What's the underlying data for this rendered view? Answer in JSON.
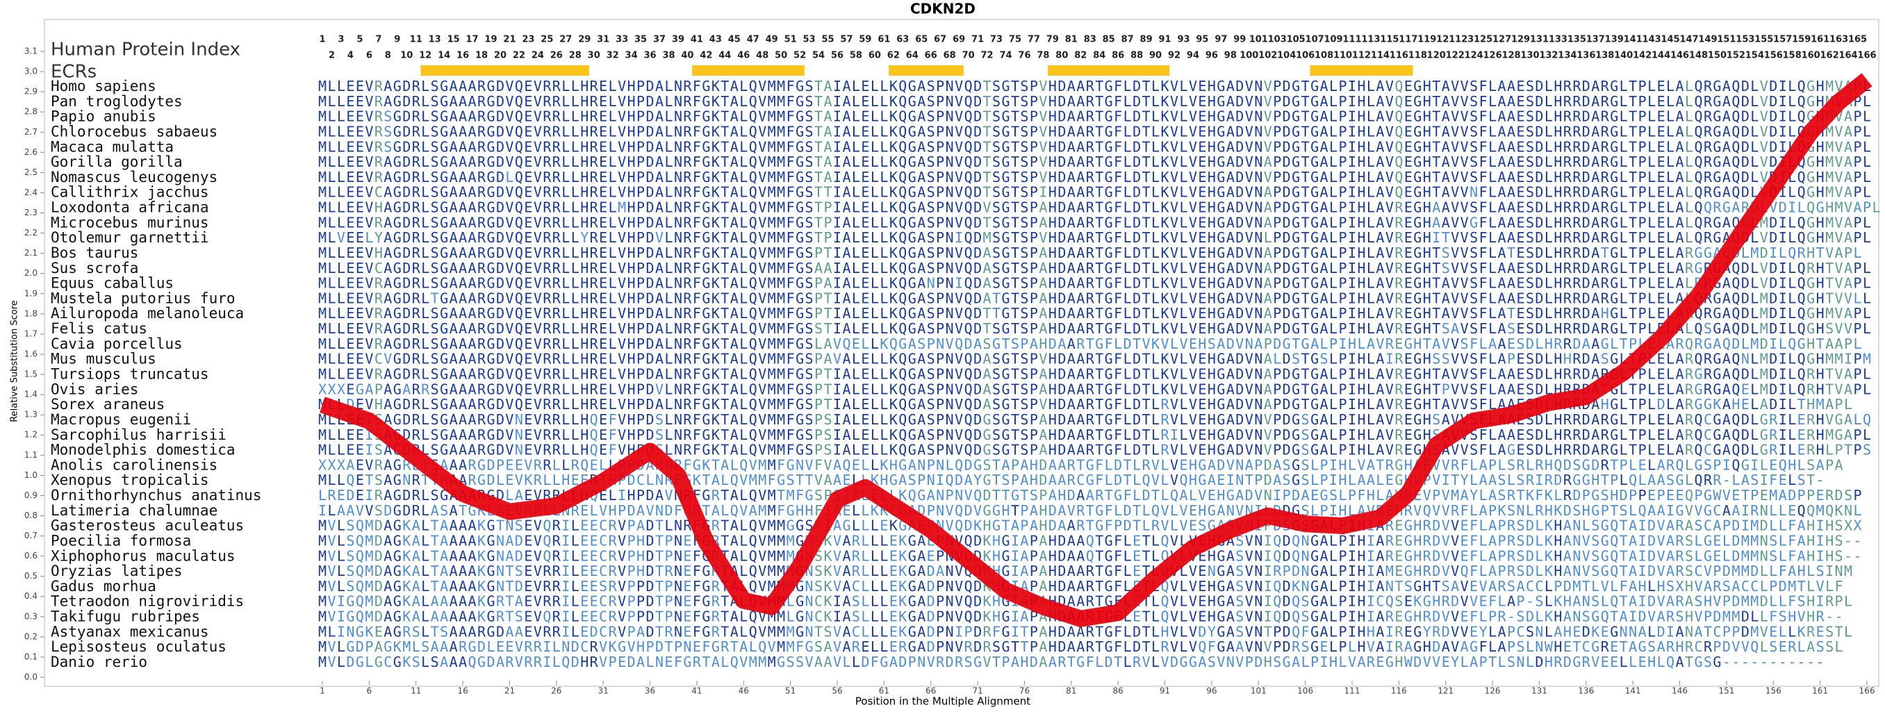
{
  "chart_data": {
    "type": "alignment",
    "title": "CDKN2D",
    "x_label": "Position in the Multiple Alignment",
    "y_label": "Relative Substitution Score",
    "xlim": [
      1,
      166
    ],
    "ylim": [
      0,
      3.1
    ],
    "xticks": [
      1,
      6,
      11,
      16,
      21,
      26,
      31,
      36,
      41,
      46,
      51,
      56,
      61,
      66,
      71,
      76,
      81,
      86,
      91,
      96,
      101,
      106,
      111,
      116,
      121,
      126,
      131,
      136,
      141,
      146,
      151,
      156,
      161,
      166
    ],
    "yticks": [
      {
        "value": 0,
        "label": "0.0"
      },
      {
        "value": 0.1,
        "label": "0.1"
      },
      {
        "value": 0.2,
        "label": "0.2"
      },
      {
        "value": 0.3,
        "label": "0.3"
      },
      {
        "value": 0.4,
        "label": "0.4"
      },
      {
        "value": 0.5,
        "label": "0.5"
      },
      {
        "value": 0.6,
        "label": "0.6"
      },
      {
        "value": 0.7,
        "label": "0.7"
      },
      {
        "value": 0.8,
        "label": "0.8"
      },
      {
        "value": 0.9,
        "label": "0.9"
      },
      {
        "value": 1,
        "label": "1.0"
      },
      {
        "value": 1.1,
        "label": "1.1"
      },
      {
        "value": 1.2,
        "label": "1.2"
      },
      {
        "value": 1.3,
        "label": "1.3"
      },
      {
        "value": 1.4,
        "label": "1.4"
      },
      {
        "value": 1.5,
        "label": "1.5"
      },
      {
        "value": 1.6,
        "label": "1.6"
      },
      {
        "value": 1.7,
        "label": "1.7"
      },
      {
        "value": 1.8,
        "label": "1.8"
      },
      {
        "value": 1.9,
        "label": "1.9"
      },
      {
        "value": 2,
        "label": "2.0"
      },
      {
        "value": 2.1,
        "label": "2.1"
      },
      {
        "value": 2.2,
        "label": "2.2"
      },
      {
        "value": 2.3,
        "label": "2.3"
      },
      {
        "value": 2.4,
        "label": "2.4"
      },
      {
        "value": 2.5,
        "label": "2.5"
      },
      {
        "value": 2.6,
        "label": "2.6"
      },
      {
        "value": 2.7,
        "label": "2.7"
      },
      {
        "value": 2.8,
        "label": "2.8"
      },
      {
        "value": 2.9,
        "label": "2.9"
      },
      {
        "value": 3,
        "label": "3.0"
      },
      {
        "value": 3.1,
        "label": "3.1"
      }
    ],
    "x": [
      1,
      6,
      11,
      16,
      21,
      26,
      31,
      36,
      39,
      42,
      46,
      49,
      52,
      56,
      59,
      62,
      66,
      70,
      74,
      78,
      82,
      86,
      90,
      94,
      98,
      102,
      106,
      110,
      114,
      117,
      120,
      124,
      128,
      132,
      136,
      140,
      144,
      148,
      152,
      156,
      160,
      163,
      166
    ],
    "values": [
      1.35,
      1.27,
      1.09,
      0.91,
      0.82,
      0.85,
      0.97,
      1.12,
      1.0,
      0.67,
      0.38,
      0.35,
      0.55,
      0.88,
      0.94,
      0.85,
      0.73,
      0.58,
      0.43,
      0.35,
      0.29,
      0.32,
      0.49,
      0.64,
      0.73,
      0.8,
      0.76,
      0.75,
      0.79,
      0.91,
      1.15,
      1.27,
      1.3,
      1.36,
      1.39,
      1.51,
      1.68,
      1.89,
      2.16,
      2.43,
      2.7,
      2.85,
      2.96
    ],
    "color": "#e6000c",
    "human_index": {
      "label": "Human Protein Index",
      "values": [
        1,
        2,
        3,
        4,
        5,
        6,
        7,
        8,
        9,
        10,
        11,
        12,
        13,
        14,
        15,
        16,
        17,
        18,
        19,
        20,
        21,
        22,
        23,
        24,
        25,
        26,
        27,
        28,
        29,
        30,
        31,
        32,
        33,
        34,
        35,
        36,
        37,
        38,
        39,
        40,
        41,
        42,
        43,
        44,
        45,
        46,
        47,
        48,
        49,
        50,
        51,
        52,
        53,
        54,
        55,
        56,
        57,
        58,
        59,
        60,
        61,
        62,
        63,
        64,
        65,
        66,
        67,
        68,
        69,
        70,
        71,
        72,
        73,
        74,
        75,
        76,
        77,
        78,
        79,
        80,
        81,
        82,
        83,
        84,
        85,
        86,
        87,
        88,
        89,
        90,
        91,
        92,
        93,
        94,
        95,
        96,
        97,
        98,
        99,
        100,
        101,
        102,
        103,
        104,
        105,
        106,
        107,
        108,
        109,
        110,
        111,
        112,
        113,
        114,
        115,
        116,
        117,
        118,
        119,
        120,
        121,
        122,
        123,
        124,
        125,
        126,
        127,
        128,
        129,
        130,
        131,
        132,
        133,
        134,
        135,
        136,
        137,
        138,
        139,
        140,
        141,
        142,
        143,
        144,
        145,
        146,
        147,
        148,
        149,
        150,
        151,
        152,
        153,
        154,
        155,
        156,
        157,
        158,
        159,
        160,
        161,
        162,
        163,
        164,
        165,
        166
      ]
    },
    "ecrs": {
      "label": "ECRs",
      "color": "#fac41c",
      "ranges": [
        [
          12,
          29
        ],
        [
          41,
          52
        ],
        [
          62,
          69
        ],
        [
          79,
          91
        ],
        [
          107,
          117
        ]
      ]
    },
    "letter_colors": {
      "conserved": "#1b3c96",
      "changed": "#4f8fcf",
      "variable": "#5e9c8c"
    },
    "alignment": [
      {
        "name": "Homo sapiens",
        "sequence": "MLLEEVRAGDRLSGAAARGDVQEVRRLLHRELVHPDALNRFGKTALQVMMFGSTAIALELLKQGASPNVQDTSGTSPVHDAARTGFLDTLKVLVEHGADVNVPDGTGALPIHLAVQEGHTAVVSFLAAESDLHRRDARGLTPLELALQRGAQDLVDILQGHMVAPL"
      },
      {
        "name": "Pan troglodytes",
        "sequence": "MLLEEVRAGDRLSGAAARGDVQEVRRLLHRELVHPDALNRFGKTALQVMMFGSTAIALELLKQGASPNVQDTSGTSPVHDAARTGFLDTLKVLVEHGADVNVPDGTGALPIHLAVQEGHTAVVSFLAAESDLHRRDARGLTPLELALQRGAQDLVDILQGHMVAPL"
      },
      {
        "name": "Papio anubis",
        "sequence": "MLLEEVRSGDRLSGAAARGDVQEVRRLLHRELVHPDALNRFGKTALQVMMFGSTAIALELLKQGASPNVQDTSGTSPVHDAARTGFLDTLKVLVEHGADVNVPDGTGALPIHLAVQEGHTAVVSFLAAESDLHRRDARGLTPLELALQRGAQDLVDILQGHMVAPL"
      },
      {
        "name": "Chlorocebus sabaeus",
        "sequence": "MLLEEVRSGDRLSGAAARGDVQEVRRLLHRELVHPDALNRFGKTALQVMMFGSTAIALELLKQGASPNVQDTSGTSPVHDAARTGFLDTLKVLVEHGADVNVPDGTGALPIHLAVQEGHTAVVSFLAAESDLHRRDARGLTPLELALQRGAQDLVDILQGHMVAPL"
      },
      {
        "name": "Macaca mulatta",
        "sequence": "MLLEEVRSGDRLSGAAARGDVQEVRRLLHRELVHPDALNRFGKTALQVMMFGSTAIALELLKQGASPNVQDTSGTSPVHDAARTGFLDTLKVLVEHGADVNVPDGTGALPIHLAVQEGHTAVVSFLAAESDLHRRDARGLTPLELALQRGAQDLVDILQGHMVAPL"
      },
      {
        "name": "Gorilla gorilla",
        "sequence": "MLLEEVRAGDRLSGAAARGDVQEVRRLLHRELVHPDALNRFGKTALQVMMFGSTAIALELLKQGASPNVQDTSGTSPVHDAARTGFLDTLKVLVEHGADVNAPDGTGALPIHLAVQEGHTAVVSFLAAESDLHRRDARGLTPLELALQRGAQDLVDILQGHMVAPL"
      },
      {
        "name": "Nomascus leucogenys",
        "sequence": "MLLEEVRAGDRLSGAAARGDLQEVRRLLHRELVHPDALNRFGKTALQVMMFGSTAIALELLKQGASPNVQDTSGTSPVHDAARTGFLDTLKVLVEHGADVNVPDGTGALPIHLAVQEGHTAVVSFLAAESDLHRRDARGLTPLELALQRGAQDLVDILQGHMVAPL"
      },
      {
        "name": "Callithrix jacchus",
        "sequence": "MLLEEVCAGDRLSGAAARGDVQEVRRLLHRELVHPDALNRFGKTALQVMMFGSTTIALELLKQGASPNVQDTSGTSPIHDAARTGFLDTLKVLVEHGADVNAPDGTGALPIHLAVQEGHTAVVNFLAAESDLHRRDARGLTPLELALQRGAQDLVDILQGHMVAPL"
      },
      {
        "name": "Loxodonta africana",
        "sequence": "MLLEEVHAGDRLSGAAARGDVQEVRRLLHRELMHPDALNRFGKTALQVMMFGSTPIALELLKQGASPNVQDVSGTSPAHDAARTGFLDTLKVLVEHGADVNAPDGTGALPIHLAVREGHAAVVSFLAAESDLHRRDARGLTPLELALQQRGARDLVDILQGHMVAPL"
      },
      {
        "name": "Microcebus murinus",
        "sequence": "MLLEEVRAGDRLSGAAARGDVQEVRRLLHRELVHPDALNRFGKTALQVMMFGSTPIALELLKQGASPNVQDTSGTSPAHDAARTGFLDTLKVLVEHGADVNAPDGTGALPIHLAVREGHAAVVGFLAAESDLHRRDARGLTPLELALQRGAQGLMDILQGHMVAPL"
      },
      {
        "name": "Otolemur garnettii",
        "sequence": "MLVEELYAGDRLSGAAARGDVQEVRRLLYRELVHPDVLNRFGKTALQVMMFGSTPIALELLKQGASPNIQDMSGTSPVHDAARTGFLDTLKVLVEHGADVNLPDGTGALPIHLAVREGHITVVSFLAAESDLHRRDARGLTPLELALQRGAQDLVDILQGHMVAPL"
      },
      {
        "name": "Bos taurus",
        "sequence": "MLLEEVHAGDRLSGAAARGDVQEVRRLLHRELVHPDALNRFGKTALQVMMFGSPTIALELLKQGASPNVQDASGTSPAHDAARTGFLDTLKVLVEHGADVNAPDGTGALPIHLAVREGHTSVVSFLATESDLHRRDATGLTPLELARGGAQDLMDILQRHTVAPL"
      },
      {
        "name": "Sus scrofa",
        "sequence": "MLLEEVCAGDRLSGAAARGDVQEVRRLLHRELVHPDALNRFGKTALQVMMFGSAAIALELLKQGASPNVQDASGTSPAHDAARTGFLDTLKVLVEHGADVNAPDGTGALPIHLAVREGHTSVVSFLAAESDLHRRDARGLTPLELARGRGAQDLVDILQRHTVAPL"
      },
      {
        "name": "Equus caballus",
        "sequence": "MLLEEVRAGDRLSGAAARGDVQEVRRLLHRELVHPDALNRFGKTALQVMMFGSPAIALELLKQGANPNIQDASGTSPAHDAARTGFLDTLKVLVEHGADVNAPDGTGALPIHLAVREGHTAVVSFLAAESDLHRRDARGLTPLELALRRGAQDLVDILQGHTVAPL"
      },
      {
        "name": "Mustela putorius furo",
        "sequence": "MLLEEVRAGDRLTGAAARGDVQEVRRLLHRELVHPDALNRFGKTALQVMMFGSPTIALELLKQGASPNVQDATGTSPAHDAARTGFLDTLKVLVEHGADVNAPDGTGALPIHLAVREGHTAVVSFLAAESDLHRRDARGLTPLELALQRGAQDLMDILQGHTVVLL"
      },
      {
        "name": "Ailuropoda melanoleuca",
        "sequence": "MLLEEVRAGDRLSGAAARGDVQEVRRLLHRELVHPDALNRFGKTALQVMMFGSPTIALELLKQGASPNVQDTTGTSPAHDAARTGFLDTLKVLVEHGADVNAPDGTGALPIHLAVREGHTAVVSFLATESDLHRRDAHGLTPLELARQRGAQDLMDILQGHMVAPL"
      },
      {
        "name": "Felis catus",
        "sequence": "MLLEEVRAGDRLSGAAARGDVQEVRRLLHRELVHPDALNRFGKTALQVMMFGSSTIALELLKQGASPNVQDTSGTSPAHDAARTGFLDTLKVLVEHGADVNAPDGTGALPIHLAVREGHTSAVSFLASESDLHRRDARGLTPLELALQSGAQDLMDILQGHSVVPL"
      },
      {
        "name": "Cavia porcellus",
        "sequence": "MLLEEVRAGDRLSGAAARGDVQEVRRLLHRELVHPDALNRFGKTALQVMMFGSLAVQELLKQGASPNVQDASGTSPAHDAARTGFLDTVKVLVEHSADVNAPDGTGALPIHLAVREGHTAVVSFLAAESDLHRRDAAGLTPLELARQRGAQDLMDILQGHTAAPL"
      },
      {
        "name": "Mus musculus",
        "sequence": "MLLEEVCVGDRLSGAAARGDVQEVRRLLHRELVHPDALNRFGKTALQVMMFGSPAVALELLKQGASPNVQDASGTSPVHDAARTGFLDTLKVLVEHGADVNALDSTGSLPIHLAIREGHSSVVSFLAPESDLHHRDASGLTPLELARQRGAQNLMDILQGHMMIPM"
      },
      {
        "name": "Tursiops truncatus",
        "sequence": "MLLEEVRAGDRLSGAAARGDVQEVRRLLHRELVHPDALNRFGKTALQVMMFGSPTIALELLKQGASPNVQDASGTSPAHDAARTGFLDTLKVLVEHGADVNAPDGTGALPIHLAVREGHTAVVSFLAAESDLHRRDARGLTPLELARGRGAQDLMDILQRHTVAPL"
      },
      {
        "name": "Ovis aries",
        "sequence": "XXXEGAPAGARRSGAAARGDVQEVRRLLHRELVHPDVLNRFGKTALQVMMFGSPTIALELLKQGASPNVQDASGTSPAHDAARTGFLDTLKVLVEHGADVNAPDGTGALPIHLAVREGHTPVVSFLAAESDLHRRDATGLTPLELARGRGAQELMDILQRHTVAPL"
      },
      {
        "name": "Sorex araneus",
        "sequence": "MLLDEVHAGDRLSGAAARGDVQEVRRLLHRELVHPDALNRFGKTALQVMMFGSPTIALELLKQGASPNVQDASGTSPVHDAARTGFLDTLRVLVEHGADVNAPDGTGALPIHLAVREGHTAVVSFLAAESDLHRRDAHGLTPLDLARGGKAHELADILTHMAPL"
      },
      {
        "name": "Macropus eugenii",
        "sequence": "MLLEEISAGDRLSGAAARGDVNEVRRLLHQEFVHPDSLNRFGKTALQVMMFGSPSIALELLKQGASPNVQDGSGTSPAHDAARTGFLDTLRVLVEHGADVNVPDGSGALPIHLAVREGHSAVVSFLAAESDLHRRDARGLTPLELARQCGAQDLGRILERHVGALQ"
      },
      {
        "name": "Sarcophilus harrisii",
        "sequence": "MLLEEISAGDRLSGAAARGDVNEVRRLLHQEFVHPDSLNRFGKTALQVMMFGSPSIALELLKQGASPNVQDGSGTSPAHDAARTGFLDTLRILVEHGADVNVPDGSGALPIHLAVREGHSAVVSFLAAESDLHRRDARGLTPLELARQCGAQDLGRILERHMGAPL"
      },
      {
        "name": "Monodelphis domestica",
        "sequence": "MLLEEISAGDRLSGAAARGDVNEVRRLLHQEFVHPDSLNRFGKTALQVMMFGSPSIALELLKQGASPNVQDGSGTSPAHDAARTGFLDTLRVLVEHGADVNVPDGSGALPIHLAVREGHSAVVSFLAGESDLHRRDARGLTPLELARQCGAQDLGRILERHLPTPS"
      },
      {
        "name": "Anolis carolinensis",
        "sequence": "XXXAEVRAGRLTSAAARGDPEEVRRLLRQELLRPDARNRFGKTALQVMMFGNVFVAQELLKHGANPNLQDGSTAPAHDAARTGFLDTLRVLVEHGADVNAPDASGSLPIHLVATRGHAEVVRFLAPLSRLRHQDSGDRTPLELARQLGSPIQGILEQHLSAPA"
      },
      {
        "name": "Xenopus tropicalis",
        "sequence": "MLLQETSAGNRTTRAARGDLEVKRLLHEERTHPDCLNRFGKTALQVMMFGSTTVAAELLKHGASPNIQDAYGTSPAHDAARCGFLDTLQVLVQHGAEINTPDASGSLPIHLAALEGHVPVITYLAASLSRIRDRGGHTPLQLAASGLQRR-LASIFELST-"
      },
      {
        "name": "Ornithorhynchus anatinus",
        "sequence": "LREDEIRAGDRLSGAAARGDLAEVRRLLHQELIHPDAVNRFGRTALQVMTMFGSPSIALELLKQGANPNVQDTTGTSPAHDAARTGFLDTLQALVEHGADVNIPDAEGSLPFHLAVREVPVMAYLASRTKFKLRDPGSHDPPEPEEQPGWVETPEMADPPERDSP"
      },
      {
        "name": "Latimeria chalumnae",
        "sequence": "ILAAVVSDGDRLASATGKLAEVRRLLNRELVHPDAVNDFGRTALQVAMMFGHHFIAELLKKCGADPNVQDVGGHTPAHDAVRTGFLDTLQVLVEHGANVNILDDGSLPIHLAVREHRVQVVRFLAPKSNLRHKDSHGPTSLQAAIGVVGCAAIRNLLEQQMQKNL"
      },
      {
        "name": "Gasterosteus aculeatus",
        "sequence": "MVLSQMDAGKALTAAAAKGTNSEVQRILEECRVPADTLNRFGRTALQVMMGGSKIAGLLLEKGAEPNVQDKHGTAPAHDAARTGFPDTLRVLVESGASVNIPDSGSGALPIHIAREGHRDVVEFLAPRSDLKHANLSGQTAIDVARASCAPDIMDLLFAHIHSXX"
      },
      {
        "name": "Poecilia formosa",
        "sequence": "MVLSQMDAGKALTAAAAKGNADEVQRILEECRVPHDTPNEFGRTALQVMMMGNSKVARLLLEKGAEPNVQDKHGIAPAHDAAQTGFLETLQVLVEHGASVNIQDQNGALPIHIAREGHRDVVEFLAPRSDLKHANVSGQTAIDVARSLGELDMMNSLFAHIHS--"
      },
      {
        "name": "Xiphophorus maculatus",
        "sequence": "MVLSQMDAGKALTAAAAKGNADEVQRILEECRVPHDTPNEFGRTALQVMMMGNSKVARLLLEKGAEPNVQDKHGIAPAHDAAQTGFLETLQVLVEHGASVNIQDQNGALPIHIAREGHRDVVEFLAPRSDLKHANVSGQTAIDVARSLGELDMMNSLFAHIHS--"
      },
      {
        "name": "Oryzias latipes",
        "sequence": "MVLSQMDAGKALTAAAAKGNTSEVRRILEECRVPHDTRNEFGRTALQVMMMGNSKVARLLLEKGADANVQDKHGIAPAHDAARTGFLETLQVLVENGASVNIRPDNGALPIHIAMEGHRDVVQFLAPRSDLKHANVSGQTAIDVARSCVPDMMDLLFAHLSINM"
      },
      {
        "name": "Gadus morhua",
        "sequence": "MVLSQMDAGKALTAAAAKGNTDEVRRILEESRVPPDTPNEFGRTALQVMMMGNSKVACLLLEKGADPNVQDKHGIAPAHDAARTGFLETLQVLVEHGASVNIQDKNGALPIHIANTSGHTSAVEVARSACCLPDMTLVLFAHLHSXHVARSACCLPDMTLVLF"
      },
      {
        "name": "Tetraodon nigroviridis",
        "sequence": "MVIGQMDAGKALAAAAAKGRTAEVRRILEECRVPPDTPNEFGRTALQVMMLGNCKIASLLLEKGADPNVQDKHGIAPAHDAARTGFLETLQVLVEHGASVNIQDQSGALPIHICQSEKGHRDVVEFLAP-SLKHANSLQTAIDVARASHVPDMMDLLFSHIRPL"
      },
      {
        "name": "Takifugu rubripes",
        "sequence": "MVIGQMDAGKALAAAAAKGRTSEVQRILEECRVPPDTPNEFGRTALQVMMLGNCKIASLLLEKGADPNVQDKHGIAPAHDAARTGFLETLQVLVEHGASVNIQDQSGALPIHIAREGHRDVVEFLPR-SDLKHANSGQTAIDVARSHVPDMMDLLFSHVHR--"
      },
      {
        "name": "Astyanax mexicanus",
        "sequence": "MLINGKEAGRSLTSAAARGDAAEVRRILEDCRVPADTRNEFGRTALQVMMMGNTSVACLLLEKGADPNIPDRFGITPAHDAARTGFLDTLHVLVDYGASVNTPDQFGALPIHHAIREGYRDVVEYLAPCSNLAHEDKEGNNALDIANATCPPDMVELLKRESTL"
      },
      {
        "name": "Lepisosteus oculatus",
        "sequence": "MVLGDPAGKMLSAAARGDLEEVRRILNDCRVKGVHPDTPNEFGRTALQVMMFGSAVARELLERGADPNVRDRSGTTPAHDAARTGFLDTLRVLVQFGAAVNVPDRSGELPLHVAIRAGHDAVAGFLAPSLNWHETCGRETAGSARHRCRPDVVQLSERLASSL"
      },
      {
        "name": "Danio rerio",
        "sequence": "MVLDGLGCGKSLSAAAQGDARVRRILQDHRVPEDALNEFGRTALQVMMMGSSVAAVLLDFGADPNVRDRSGVTPAHDAARTGFLDTLRVLVDGGASVNVPDHSGALPIHLVAREGHWDVVEYLAPTLSNLDHRDGRVEELLEHLQATGSG-----------"
      }
    ]
  }
}
